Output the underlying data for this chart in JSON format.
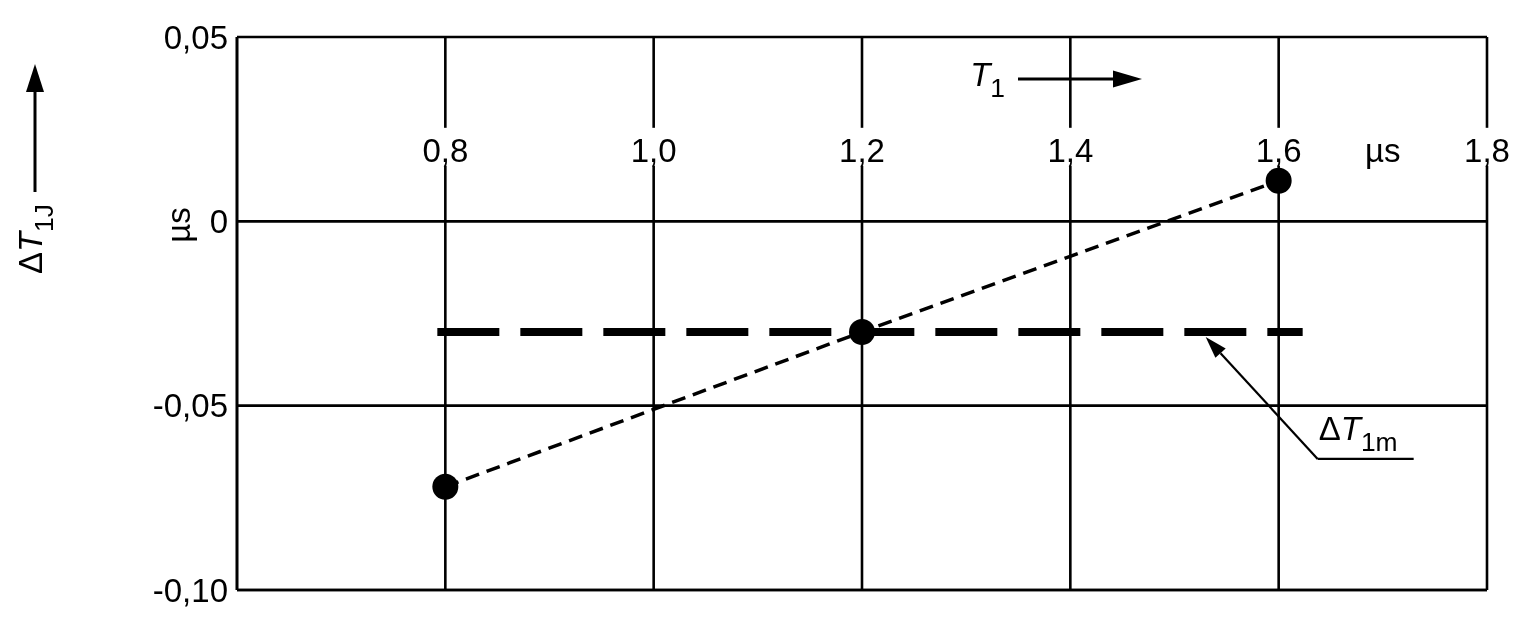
{
  "chart_data": {
    "type": "line",
    "xlabel": "T$_{1}$",
    "ylabel": "ΔT$_{1J}$",
    "x": [
      0.8,
      1.2,
      1.6
    ],
    "series": [
      {
        "color": "#000000",
        "values": [
          -0.072,
          -0.03,
          0.011
        ]
      }
    ],
    "xlim": [
      0.6,
      1.8
    ],
    "xticks": [
      {
        "value": 0.8,
        "label": "0,8"
      },
      {
        "value": 1.0,
        "label": "1,0"
      },
      {
        "value": 1.2,
        "label": "1,2"
      },
      {
        "value": 1.4,
        "label": "1,4"
      },
      {
        "value": 1.6,
        "label": "1,6"
      },
      {
        "value": 1.8,
        "label": "1,8"
      }
    ],
    "ylim": [
      -0.1,
      0.05
    ],
    "yticks": [
      {
        "value": -0.1,
        "label": "-0,10"
      },
      {
        "value": -0.05,
        "label": "-0,05"
      },
      0,
      {
        "value": 0.05,
        "label": "0,05"
      }
    ],
    "ref_lines": [
      {
        "axis": "y",
        "value": -0.03,
        "label": "ΔT$_{1m}$",
        "color": "#000000",
        "line_style": "dashed"
      }
    ],
    "annotations": [
      "µs",
      "µs"
    ],
    "grid": true,
    "marker": "circle",
    "line_style": "dashed"
  }
}
